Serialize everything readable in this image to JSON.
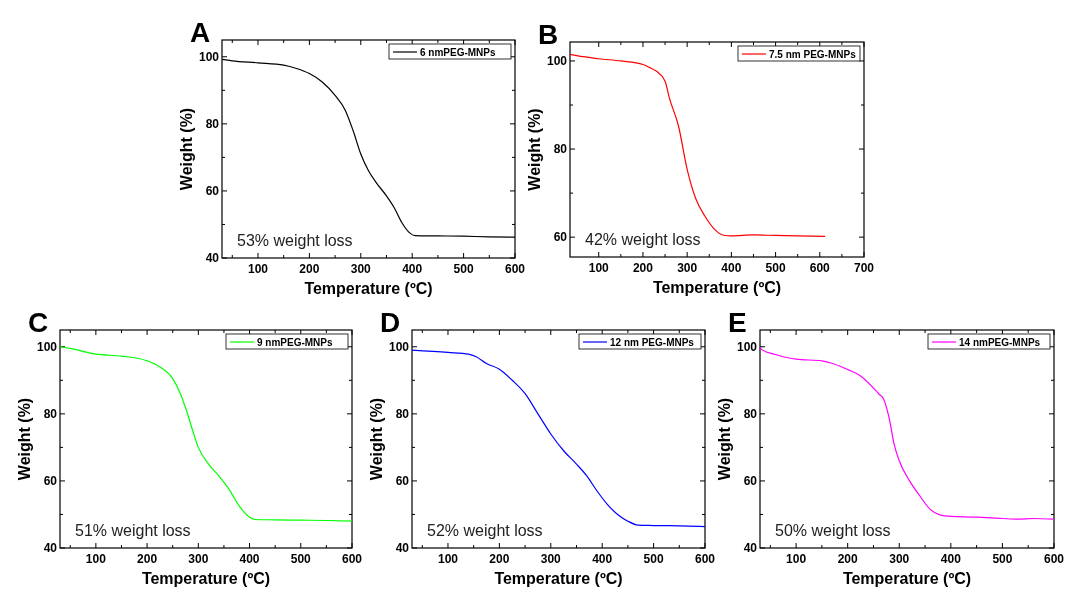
{
  "chart_data": [
    {
      "type": "line",
      "title": "A",
      "xlabel": "Temperature (ºC)",
      "ylabel": "Weight (%)",
      "annotations": [
        "53% weight loss"
      ],
      "legend": "top right",
      "xlim": [
        30,
        600
      ],
      "ylim": [
        40,
        105
      ],
      "xticks": [
        {
          "value": 50,
          "label": null
        },
        100,
        {
          "value": 150,
          "label": null
        },
        200,
        {
          "value": 250,
          "label": null
        },
        300,
        {
          "value": 350,
          "label": null
        },
        400,
        {
          "value": 450,
          "label": null
        },
        500,
        {
          "value": 550,
          "label": null
        },
        600
      ],
      "yticks": [
        40,
        {
          "value": 50,
          "label": null
        },
        60,
        {
          "value": 70,
          "label": null
        },
        80,
        {
          "value": 90,
          "label": null
        },
        100
      ],
      "x": [
        30,
        50,
        100,
        150,
        175,
        200,
        225,
        250,
        270,
        285,
        300,
        315,
        330,
        350,
        365,
        380,
        395,
        405,
        450,
        500,
        550,
        600
      ],
      "series": [
        {
          "name": "6 nmPEG-MNPs",
          "color": "#000000",
          "values": [
            99.2,
            98.8,
            98.2,
            97.5,
            96.5,
            95,
            92.5,
            88.5,
            84,
            78,
            71,
            66,
            62.5,
            58.5,
            55,
            50.5,
            47.5,
            46.7,
            46.6,
            46.5,
            46.3,
            46.2
          ]
        }
      ]
    },
    {
      "type": "line",
      "title": "B",
      "xlabel": "Temperature (ºC)",
      "ylabel": "Weight (%)",
      "annotations": [
        "42% weight loss"
      ],
      "legend": "top right",
      "xlim": [
        35,
        700
      ],
      "ylim": [
        55.5,
        104.3
      ],
      "xticks": [
        100,
        {
          "value": 150,
          "label": null
        },
        200,
        {
          "value": 250,
          "label": null
        },
        300,
        {
          "value": 350,
          "label": null
        },
        400,
        {
          "value": 450,
          "label": null
        },
        500,
        {
          "value": 550,
          "label": null
        },
        600,
        {
          "value": 650,
          "label": null
        },
        700
      ],
      "yticks": [
        60,
        {
          "value": 70,
          "label": null
        },
        80,
        {
          "value": 90,
          "label": null
        },
        100
      ],
      "x": [
        35,
        50,
        100,
        150,
        200,
        215,
        230,
        250,
        260,
        280,
        300,
        320,
        340,
        360,
        380,
        400,
        450,
        500,
        550,
        612
      ],
      "series": [
        {
          "name": "7.5 nm PEG-MNPs",
          "color": "#ff0000",
          "values": [
            101.5,
            101.2,
            100.5,
            100,
            99.2,
            98.5,
            97.7,
            95.4,
            91.5,
            85.4,
            75.4,
            68.6,
            64.8,
            62,
            60.5,
            60.3,
            60.5,
            60.4,
            60.3,
            60.2
          ]
        }
      ]
    },
    {
      "type": "line",
      "title": "C",
      "xlabel": "Temperature (ºC)",
      "ylabel": "Weight (%)",
      "annotations": [
        "51% weight loss"
      ],
      "legend": "top right",
      "xlim": [
        30,
        600
      ],
      "ylim": [
        40,
        105
      ],
      "xticks": [
        {
          "value": 50,
          "label": null
        },
        100,
        {
          "value": 150,
          "label": null
        },
        200,
        {
          "value": 250,
          "label": null
        },
        300,
        {
          "value": 350,
          "label": null
        },
        400,
        {
          "value": 450,
          "label": null
        },
        500,
        {
          "value": 550,
          "label": null
        },
        600
      ],
      "yticks": [
        40,
        {
          "value": 50,
          "label": null
        },
        60,
        {
          "value": 70,
          "label": null
        },
        80,
        {
          "value": 90,
          "label": null
        },
        100
      ],
      "x": [
        30,
        50,
        100,
        150,
        200,
        225,
        250,
        265,
        280,
        290,
        300,
        320,
        340,
        360,
        380,
        400,
        410,
        450,
        500,
        550,
        600
      ],
      "series": [
        {
          "name": "9 nmPEG-MNPs",
          "color": "#00ff00",
          "values": [
            100,
            99.5,
            97.8,
            97.2,
            95.8,
            94,
            90.5,
            86,
            79.5,
            74.5,
            70,
            65,
            61.5,
            57.5,
            52.5,
            49.2,
            48.5,
            48.4,
            48.3,
            48.2,
            48
          ]
        }
      ]
    },
    {
      "type": "line",
      "title": "D",
      "xlabel": "Temperature (ºC)",
      "ylabel": "Weight (%)",
      "annotations": [
        "52% weight loss"
      ],
      "legend": "top right",
      "xlim": [
        30,
        600
      ],
      "ylim": [
        40,
        105
      ],
      "xticks": [
        {
          "value": 50,
          "label": null
        },
        100,
        {
          "value": 150,
          "label": null
        },
        200,
        {
          "value": 250,
          "label": null
        },
        300,
        {
          "value": 350,
          "label": null
        },
        400,
        {
          "value": 450,
          "label": null
        },
        500,
        {
          "value": 550,
          "label": null
        },
        600
      ],
      "yticks": [
        40,
        {
          "value": 50,
          "label": null
        },
        60,
        {
          "value": 70,
          "label": null
        },
        80,
        {
          "value": 90,
          "label": null
        },
        100
      ],
      "x": [
        30,
        100,
        140,
        155,
        175,
        200,
        225,
        250,
        275,
        300,
        325,
        350,
        370,
        390,
        410,
        430,
        450,
        470,
        500,
        550,
        600
      ],
      "series": [
        {
          "name": "12 nm PEG-MNPs",
          "color": "#0000ff",
          "values": [
            99,
            98.3,
            97.8,
            97,
            95,
            93.3,
            90,
            86,
            80,
            74,
            69,
            65,
            61.5,
            57,
            53,
            50,
            48,
            46.8,
            46.7,
            46.6,
            46.4
          ]
        }
      ]
    },
    {
      "type": "line",
      "title": "E",
      "xlabel": "Temperature (ºC)",
      "ylabel": "Weight (%)",
      "annotations": [
        "50% weight loss"
      ],
      "legend": "top right",
      "xlim": [
        30,
        600
      ],
      "ylim": [
        40,
        105
      ],
      "xticks": [
        {
          "value": 50,
          "label": null
        },
        100,
        {
          "value": 150,
          "label": null
        },
        200,
        {
          "value": 250,
          "label": null
        },
        300,
        {
          "value": 350,
          "label": null
        },
        400,
        {
          "value": 450,
          "label": null
        },
        500,
        {
          "value": 550,
          "label": null
        },
        600
      ],
      "yticks": [
        40,
        {
          "value": 50,
          "label": null
        },
        60,
        {
          "value": 70,
          "label": null
        },
        80,
        {
          "value": 90,
          "label": null
        },
        100
      ],
      "x": [
        30,
        35,
        60,
        100,
        150,
        175,
        200,
        225,
        245,
        260,
        270,
        280,
        290,
        300,
        320,
        340,
        360,
        380,
        400,
        450,
        500,
        530,
        560,
        600
      ],
      "series": [
        {
          "name": "14 nmPEG-MNPs",
          "color": "#ff00ff",
          "values": [
            99.8,
            99,
            97.7,
            96.3,
            95.8,
            94.8,
            93.2,
            91.3,
            88.5,
            86,
            84.3,
            79,
            71,
            66,
            60,
            55.5,
            51.5,
            49.8,
            49.4,
            49.2,
            48.8,
            48.6,
            48.8,
            48.6
          ]
        }
      ]
    }
  ]
}
